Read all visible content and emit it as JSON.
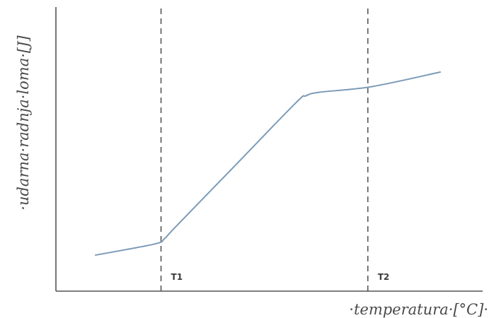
{
  "chart_data": {
    "type": "line",
    "xlabel": "·temperatura·[°C]·",
    "ylabel": "·udarna·radnja·loma·[J]",
    "x_ticks_shown": false,
    "y_ticks_shown": false,
    "grid": false,
    "series": [
      {
        "color": "#7b9bb8",
        "points": [
          [
            0.0,
            0.0
          ],
          [
            0.17,
            0.06
          ],
          [
            0.2,
            0.09
          ],
          [
            0.23,
            0.15
          ],
          [
            0.4,
            0.48
          ],
          [
            0.58,
            0.83
          ],
          [
            0.61,
            0.87
          ],
          [
            0.65,
            0.89
          ],
          [
            0.8,
            0.92
          ],
          [
            1.0,
            1.0
          ]
        ]
      }
    ],
    "annotations": [
      {
        "label": "T1",
        "x": 0.19,
        "style": "dashed-vertical"
      },
      {
        "label": "T2",
        "x": 0.79,
        "style": "dashed-vertical"
      }
    ]
  }
}
